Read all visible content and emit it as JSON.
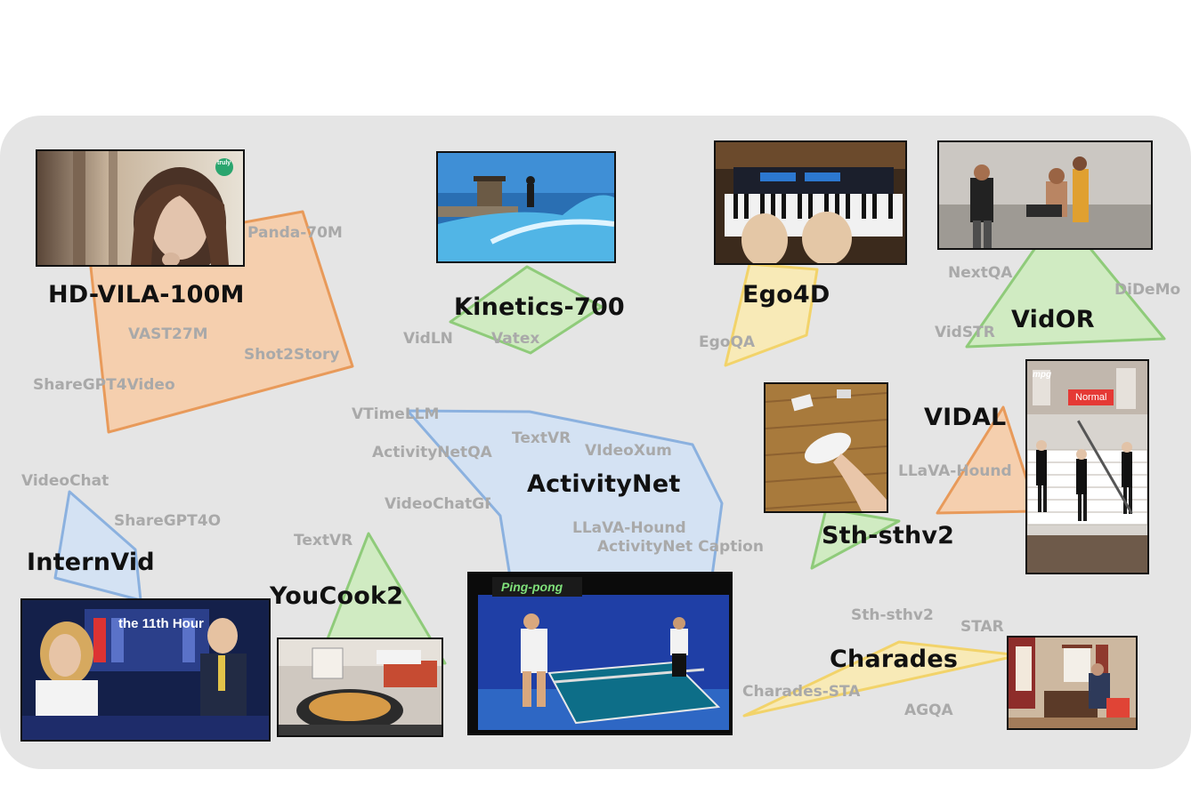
{
  "colors": {
    "panel": "#e5e5e5",
    "orange": "#e89a5a",
    "orange_fill": "#f5cfae",
    "green": "#8fcb7a",
    "green_fill": "#d0ebc2",
    "blue": "#8bb1df",
    "blue_fill": "#d4e2f3",
    "yellow": "#f2d36a",
    "yellow_fill": "#f8eab7",
    "sublabel": "#a9a9a9"
  },
  "clusters": [
    {
      "label": "HD-VILA-100M",
      "color": "orange",
      "datasets": [
        "Panda-70M",
        "VAST27M",
        "Shot2Story",
        "ShareGPT4Video"
      ]
    },
    {
      "label": "Kinetics-700",
      "color": "green",
      "datasets": [
        "VidLN",
        "Vatex"
      ]
    },
    {
      "label": "Ego4D",
      "color": "yellow",
      "datasets": [
        "EgoQA"
      ]
    },
    {
      "label": "VidOR",
      "color": "green",
      "datasets": [
        "NextQA",
        "DiDeMo",
        "VidSTR"
      ]
    },
    {
      "label": "ActivityNet",
      "color": "blue",
      "datasets": [
        "VTimeLLM",
        "TextVR",
        "ActivityNetQA",
        "VIdeoXum",
        "VideoChatGPT",
        "LLaVA-Hound",
        "ActivityNet Caption"
      ]
    },
    {
      "label": "VIDAL",
      "color": "orange",
      "datasets": [
        "LLaVA-Hound"
      ]
    },
    {
      "label": "Sth-sthv2",
      "color": "green",
      "datasets": []
    },
    {
      "label": "InternVid",
      "color": "blue",
      "datasets": [
        "VideoChat",
        "ShareGPT4O"
      ]
    },
    {
      "label": "YouCook2",
      "color": "green",
      "datasets": [
        "TextVR"
      ]
    },
    {
      "label": "Charades",
      "color": "yellow",
      "datasets": [
        "Sth-sthv2",
        "STAR",
        "Charades-STA",
        "AGQA"
      ]
    }
  ],
  "thumbnails": {
    "vidal_badge": "Normal",
    "vidal_logo": "mpg",
    "pingpong_banner": "Ping-pong",
    "tv_logo": "the 11th Hour",
    "hd_logo": "truly"
  }
}
